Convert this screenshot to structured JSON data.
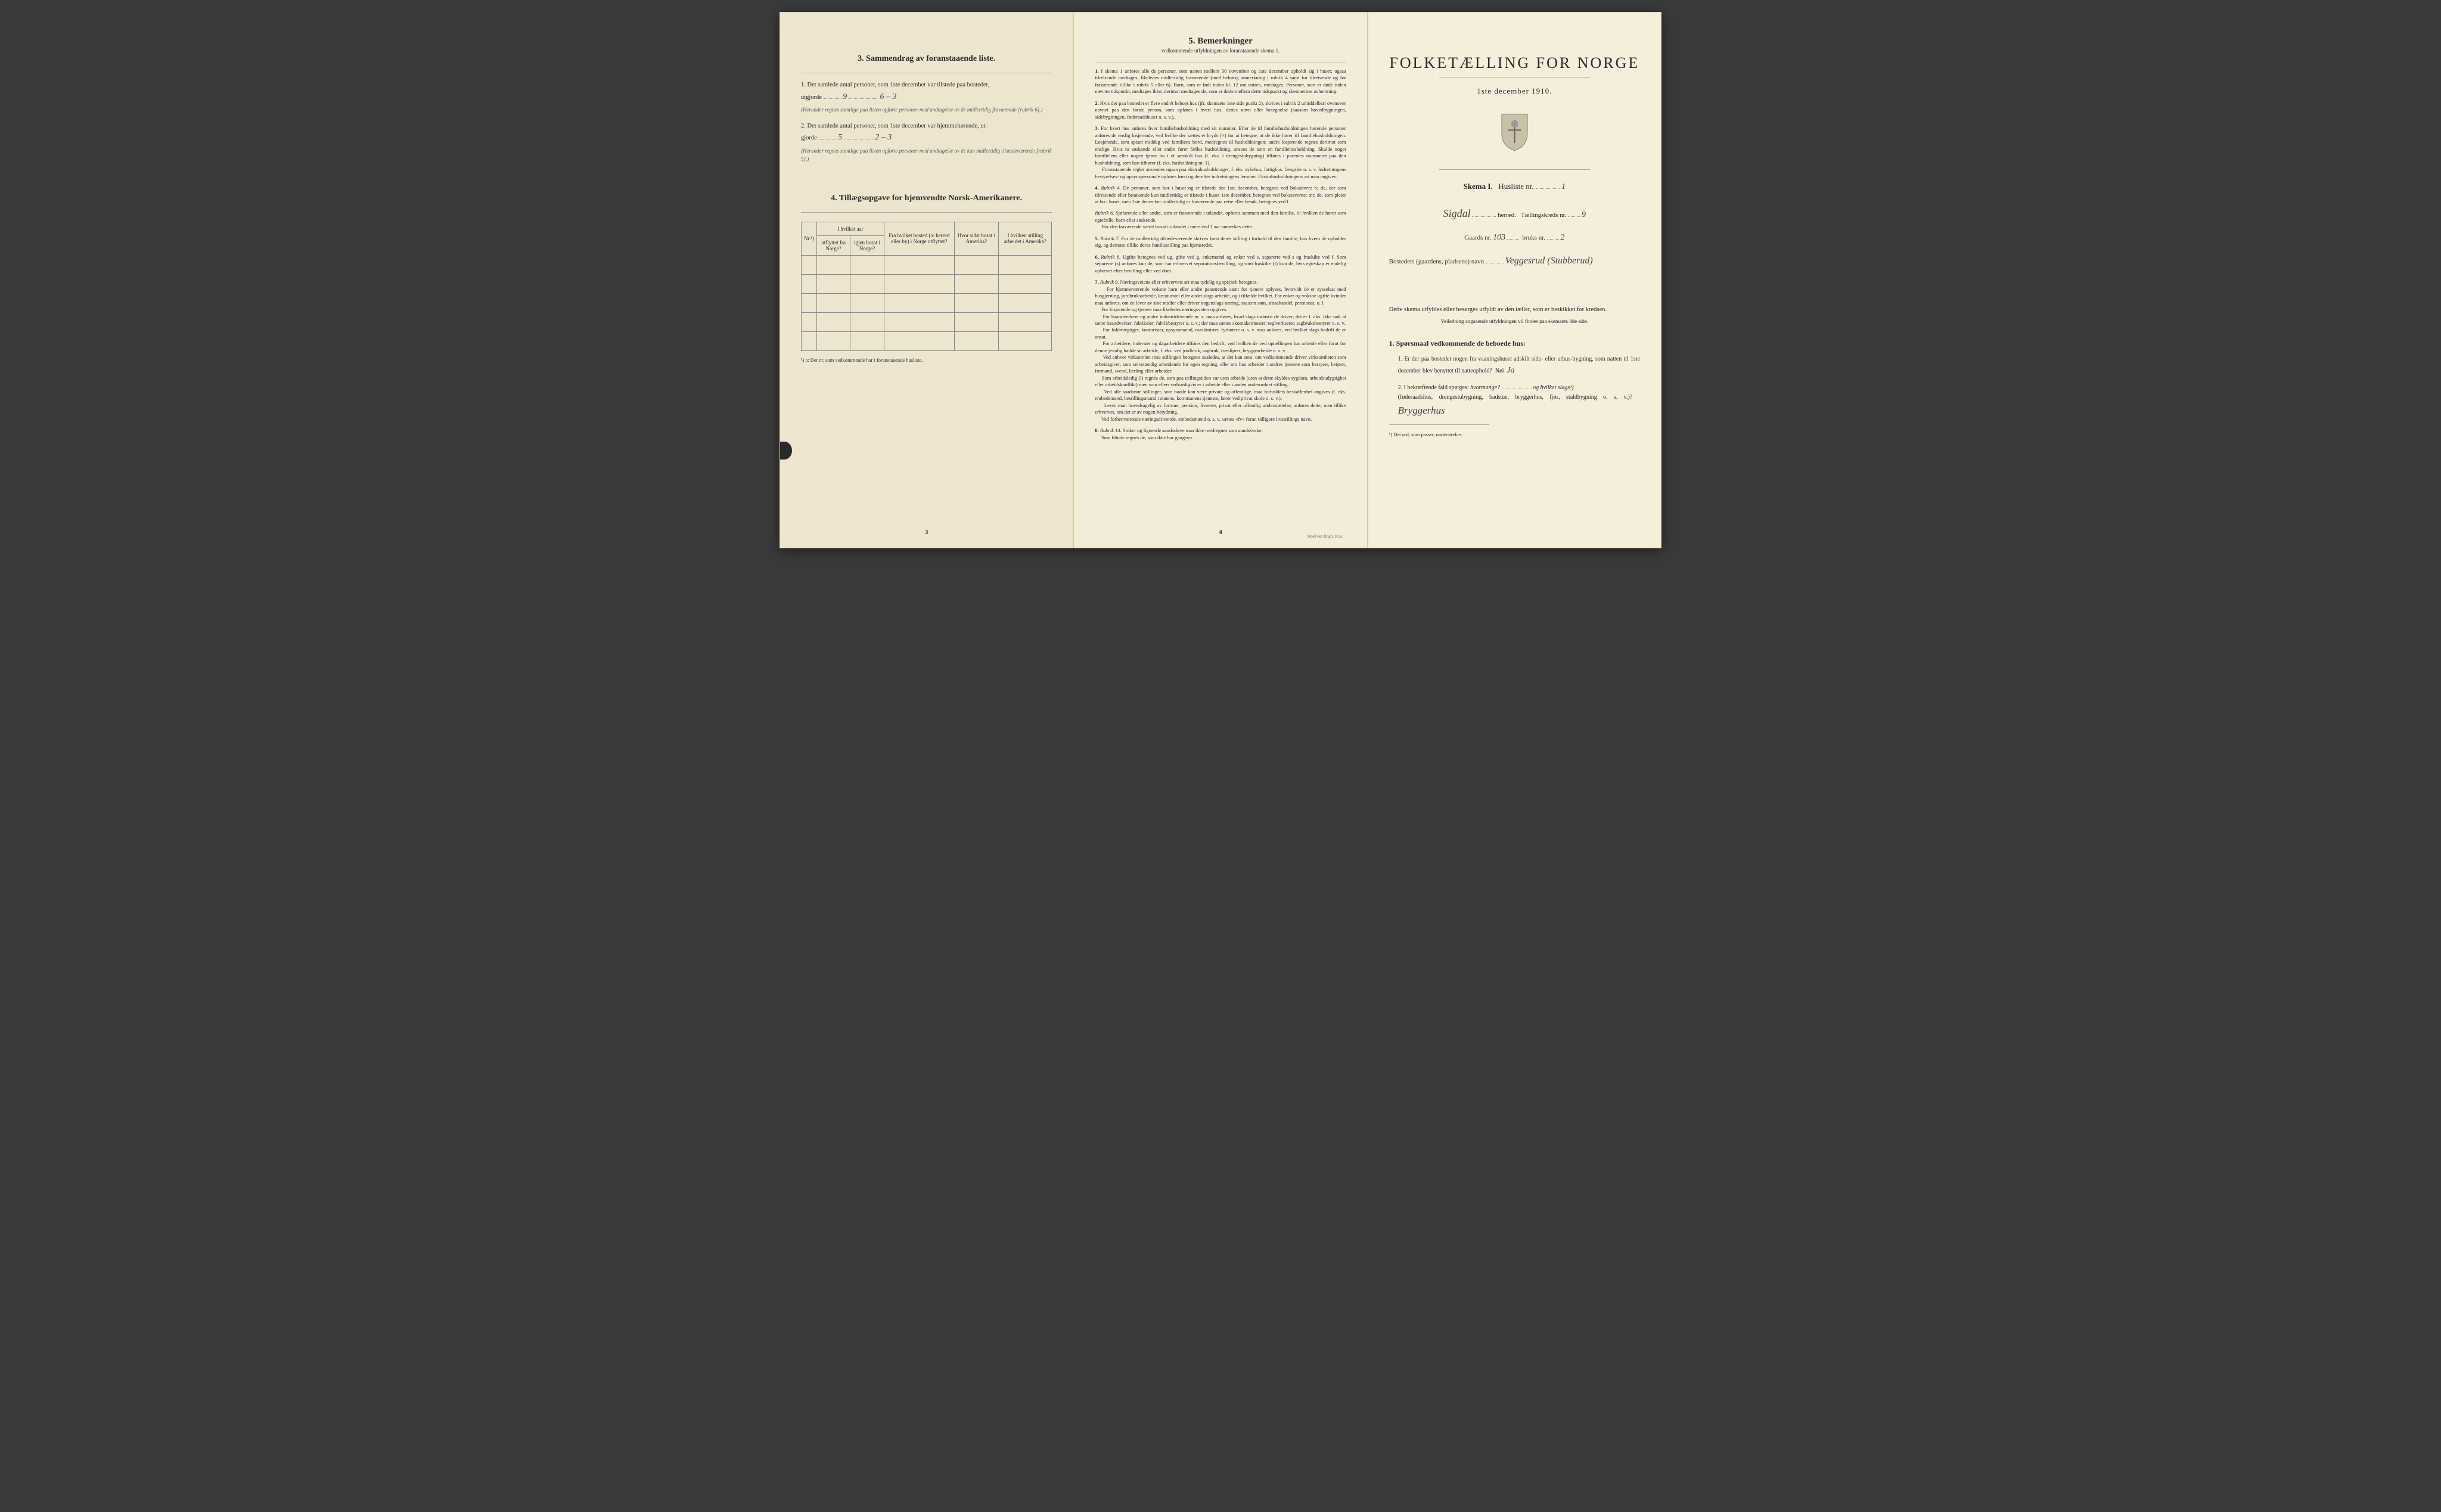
{
  "page1": {
    "section3_title": "3.  Sammendrag av foranstaaende liste.",
    "item1_prefix": "1. Det samlede antal personer, som 1ste december var tilstede paa bostedet,",
    "item1_label": "utgjorde",
    "item1_value": "9",
    "item1_sub": "6 – 3",
    "item1_note": "(Herunder regnes samtlige paa listen opførte personer med undtagelse av de midlertidig fraværende [rubrik 6].)",
    "item2_prefix": "2. Det samlede antal personer, som 1ste december var hjemmehørende, ut-",
    "item2_label": "gjorde",
    "item2_value": "5",
    "item2_sub": "2 – 3",
    "item2_note": "(Herunder regnes samtlige paa listen opførte personer med undtagelse av de kun midlertidig tilstedeværende [rubrik 5].)",
    "section4_title": "4.  Tillægsopgave for hjemvendte Norsk-Amerikanere.",
    "table": {
      "col_nr": "Nr.¹)",
      "col1_top": "I hvilket aar",
      "col1a": "utflyttet fra Norge?",
      "col1b": "igjen bosat i Norge?",
      "col2": "Fra hvilket bosted (ɔ: herred eller by) i Norge utflyttet?",
      "col3": "Hvor sidst bosat i Amerika?",
      "col4": "I hvilken stilling arbeidet i Amerika?"
    },
    "footnote": "¹) ɔ: Det nr. som vedkommende har i foranstaaende husliste.",
    "page_num": "3"
  },
  "page2": {
    "title": "5.  Bemerkninger",
    "subtitle": "vedkommende utfyldningen av foranstaaende skema 1.",
    "items": [
      {
        "n": "1.",
        "text": "I skema 1 anføres alle de personer, som natten mellem 30 november og 1ste december opholdt sig i huset; ogsaa tilreisende medtages; likeledes midlertidig fraværende (med behørig anmerkning i rubrik 4 samt for tilreisende og for fraværende tillike i rubrik 5 eller 6). Barn, som er født inden kl. 12 om natten, medtages. Personer, som er døde inden nævnte tidspunkt, medtages ikke; derimot medtages de, som er døde mellem dette tidspunkt og skemaernes avhentning."
      },
      {
        "n": "2.",
        "text": "Hvis der paa bostedet er flere end ét beboet hus (jfr. skemaets 1ste side punkt 2), skrives i rubrik 2 umiddelbart ovenover navnet paa den første person, som opføres i hvert hus, dettes navn eller betegnelse (saasom hovedbygningen, sidebygningen, føderaadshuset o. s. v.)."
      },
      {
        "n": "3.",
        "text": "For hvert hus anføres hver familiehusholdning med sit nummer. Efter de til familiehusholdningen hørende personer anføres de enslig losjerende, ved hvilke der sættes et kryds (×) for at betegne, at de ikke hører til familiehusholdningen. Losjerende, som spiser middag ved familiens bord, medregnes til husholdningen; andre losjerende regnes derimot som enslige. Hvis to søskende eller andre fører fælles husholdning, ansees de som en familiehusholdning. Skulde noget familielem eller nogen tjener bo i et særskilt hus (f. eks. i drengestubygning) tilføies i parentes nummeret paa den husholdning, som han tilhører (f. eks. husholdning nr. 1).\n     Foranstaaende regler anvendes ogsaa paa ekstrahusholdninger, f. eks. sykehus, fattighus, fængsler o. s. v. Indretningens bestyrelses- og opsynspersonale opføres først og derefter indretningens lemmer. Ekstrahusholdningens art maa angives."
      },
      {
        "n": "4.",
        "label": "Rubrik 4.",
        "text": "De personer, som bor i huset og er tilstede der 1ste december, betegnes ved bokstaven: b; de, der som tilreisende eller besøkende kun midlertidig er tilstede i huset 1ste december, betegnes ved bokstaverne: mt; de, som pleier at bo i huset, men 1ste december midlertidig er fraværende paa reise eller besøk, betegnes ved f."
      },
      {
        "n": "",
        "label": "Rubrik 6.",
        "text": "Sjøfarende eller andre, som er fraværende i utlandet, opføres sammen med den familie, til hvilken de hører som egtefælle, barn eller søskende.\n     Har den fraværende været bosat i utlandet i mere end 1 aar anmerkes dette."
      },
      {
        "n": "5.",
        "label": "Rubrik 7.",
        "text": "For de midlertidig tilstedeværende skrives først deres stilling i forhold til den familie, hos hvem de opholder sig, og dernæst tillike deres familiestilling paa hjemstedet."
      },
      {
        "n": "6.",
        "label": "Rubrik 8.",
        "text": "Ugifte betegnes ved ug, gifte ved g, enkemænd og enker ved e, separerte ved s og fraskilte ved f. Som separerte (s) anføres kun de, som har erhvervet separationsbevilling, og som fraskilte (f) kun de, hvis egteskap er endelig ophævet efter bevilling eller ved dom."
      },
      {
        "n": "7.",
        "label": "Rubrik 9.",
        "text": "Næringsveiens eller erhvervets art maa tydelig og specielt betegnes.\n     For hjemmeværende voksne barn eller andre paarørende samt for tjenere oplyses, hvorvidt de er sysselsat med husgjerning, jordbruksarbeide, kreaturstel eller andet slags arbeide, og i tilfælde hvilket. For enker og voksne ugifte kvinder maa anføres, om de lever av sine midler eller driver nogenslags næring, saasom søm, smaahandel, pensionat, o. l.\n     For losjerende og tjenere maa likeledes næringsveien opgives.\n     For haandverkere og andre industridrivende m. v. maa anføres, hvad slags industri de driver; det er f. eks. ikke nok at sætte haandverker, fabrikeier, fabrikbestyrer o. s. v.; der maa sættes skomakermester, teglverkseier, sagbruksbestyrer o. s. v.\n     For fuldmægtiger, kontorister, opsynsmænd, maskinister, fyrbøtere o. s. v. maa anføres, ved hvilket slags bedrift de er ansat.\n     For arbeidere, inderster og dagarbeidere tilføies den bedrift, ved hvilken de ved optællingen har arbeide eller forut for denne jevnlig hadde sit arbeide, f. eks. ved jordbruk, sagbruk, træsliperi, bryggearbeide o. s. v.\n     Ved enhver virksomhet maa stillingen betegnes saaledes, at det kan sees, om vedkommende driver virksomheten som arbeidsgiver, som selvstændig arbeidende for egen regning, eller om han arbeider i andres tjeneste som bestyrer, betjent, formand, svend, lærling eller arbeider.\n     Som arbeidsledig (l) regnes de, som paa tællingstiden var uten arbeide (uten at dette skyldes sygdom, arbeidsudygtighet eller arbeidskonflikt) men som ellers sedvanligvis er i arbeide eller i anden underordnet stilling.\n     Ved alle saadanne stillinger, som baade kan være private og offentlige, maa forholdets beskaffenhet angives (f. eks. embedsmand, bestillingsmand i statens, kommunens tjeneste, lærer ved privat skole o. s. v.).\n     Lever man hovedsagelig av formue, pension, livrente, privat eller offentlig understøttelse, anføres dette, men tillike erhvervet, om det er av nogen betydning.\n     Ved forhenværende næringsdrivende, embedsmænd o. s. v. sættes «fv» foran tidligere livsstillings navn."
      },
      {
        "n": "8.",
        "label": "Rubrik 14.",
        "text": "Sinker og lignende aandssløve maa ikke medregnes som aandssvake.\n     Som blinde regnes de, som ikke har gangsyn."
      }
    ],
    "page_num": "4",
    "printer": "Steen'ske Bogtr.  Kr.a."
  },
  "page3": {
    "main_title": "FOLKETÆLLING FOR NORGE",
    "date": "1ste december 1910.",
    "skema_label": "Skema I.",
    "husliste_label": "Husliste nr.",
    "husliste_value": "1",
    "herred_value": "Sigdal",
    "herred_label": "herred.",
    "kreds_label": "Tællingskreds nr.",
    "kreds_value": "9",
    "gaards_label": "Gaards nr.",
    "gaards_value": "103",
    "bruks_label": "bruks nr.",
    "bruks_value": "2",
    "bosted_label": "Bostedets (gaardens, pladsens) navn",
    "bosted_value": "Veggesrud (Stubberud)",
    "instruction_text": "Dette skema utfyldes eller besørges utfyldt av den tæller, som er beskikket for kredsen.",
    "instruction_sub": "Veiledning angaaende utfyldningen vil findes paa skemaets 4de side.",
    "q_heading": "1. Spørsmaal vedkommende de beboede hus:",
    "q1": "1. Er der paa bostedet nogen fra vaaningshuset adskilt side- eller uthus-bygning, som natten til 1ste december blev benyttet til natteophold?",
    "q1_answer": "Ja",
    "q2_prefix": "2. I bekræftende fald spørges:",
    "q2_a": "hvormange?",
    "q2_b": "og hvilket slags¹)",
    "q2_paren": "(føderaadshus, drengestubygning, badstue, bryggerhus, fjøs, staldbygning o. s. v.)?",
    "q2_answer": "Bryggerhus",
    "footnote": "¹) Det ord, som passer, understrekes."
  },
  "colors": {
    "paper1": "#ede5d0",
    "paper2": "#f2ecd9",
    "paper3": "#f4eedb",
    "ink": "#2a2a2a",
    "border": "#888888"
  }
}
